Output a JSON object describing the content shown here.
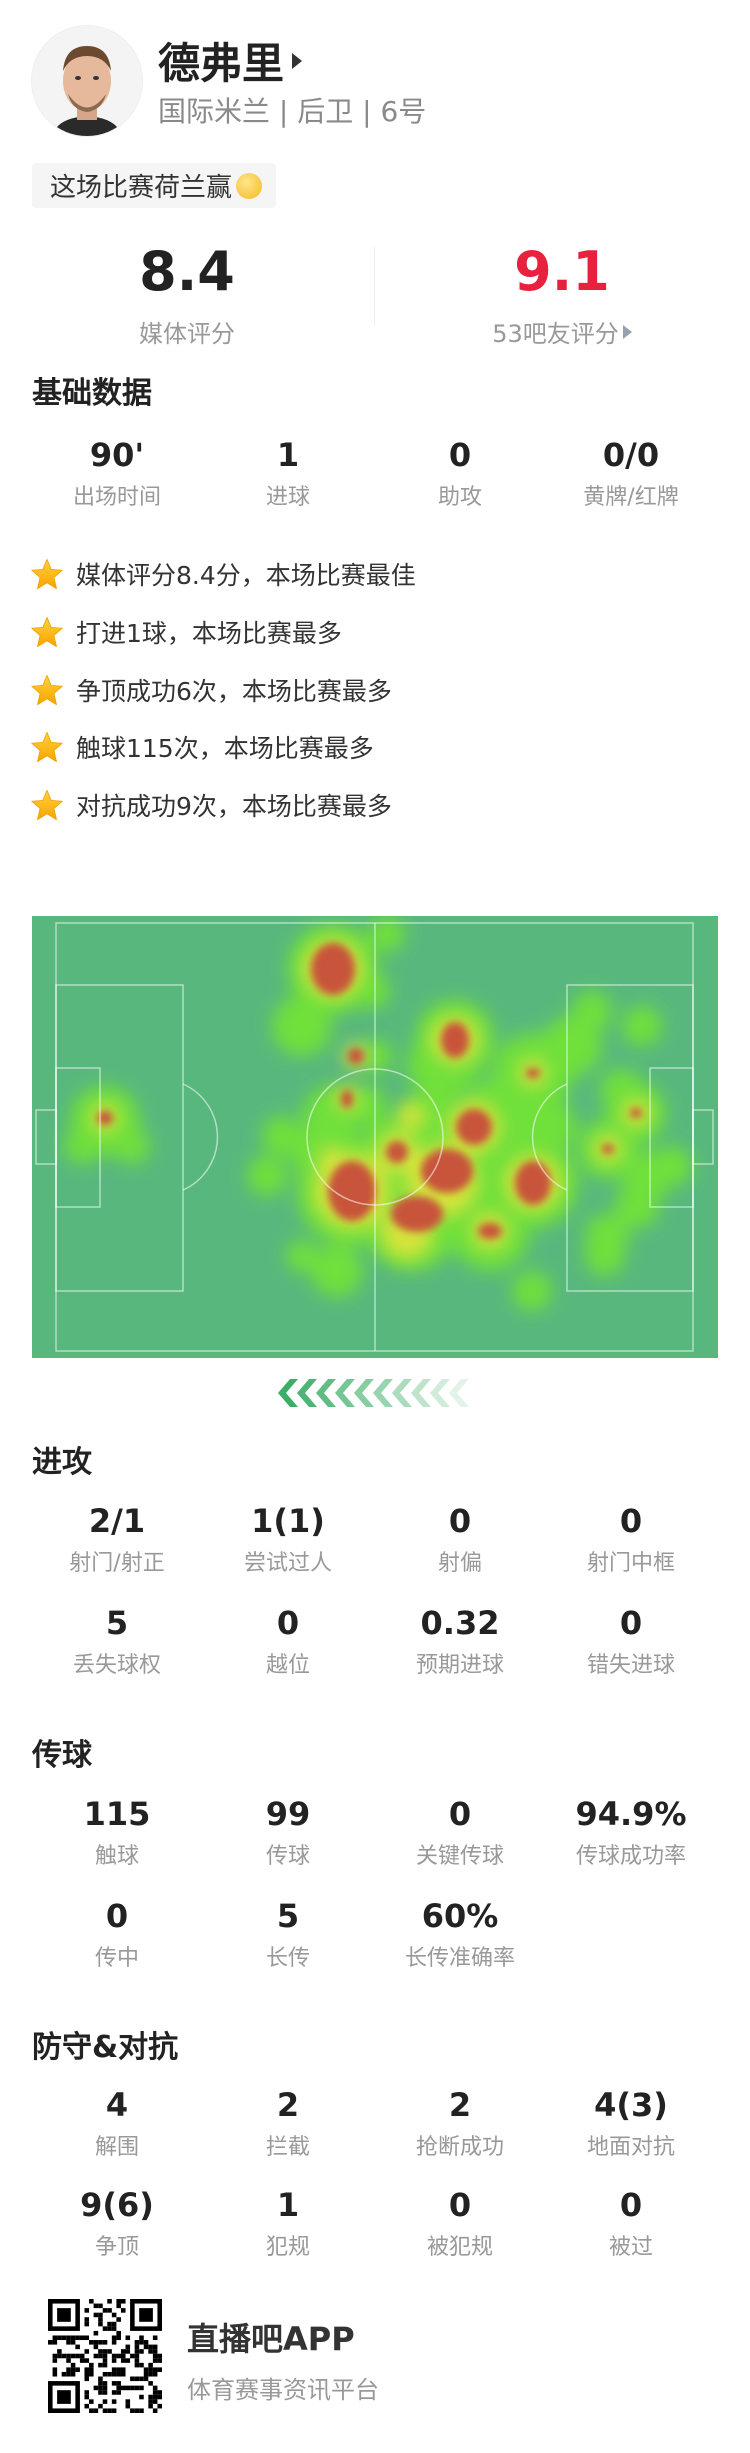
{
  "player": {
    "name": "德弗里",
    "info": "国际米兰 | 后卫 | 6号",
    "bubble": "这场比赛荷兰赢",
    "bubble_emoji": "smiling-blush-emoji"
  },
  "ratings": {
    "media": {
      "value": "8.4",
      "label": "媒体评分",
      "color": "#222222"
    },
    "fans": {
      "value": "9.1",
      "label": "53吧友评分",
      "color": "#e8213f"
    }
  },
  "basic": {
    "title": "基础数据",
    "stats": [
      {
        "value": "90'",
        "label": "出场时间"
      },
      {
        "value": "1",
        "label": "进球"
      },
      {
        "value": "0",
        "label": "助攻"
      },
      {
        "value": "0/0",
        "label": "黄牌/红牌"
      }
    ]
  },
  "highlights": [
    "媒体评分8.4分，本场比赛最佳",
    "打进1球，本场比赛最多",
    "争顶成功6次，本场比赛最多",
    "触球115次，本场比赛最多",
    "对抗成功9次，本场比赛最多"
  ],
  "heatmap": {
    "pitch_color": "#58b77d",
    "attack_direction": "left"
  },
  "attack": {
    "title": "进攻",
    "stats": [
      {
        "value": "2/1",
        "label": "射门/射正"
      },
      {
        "value": "1(1)",
        "label": "尝试过人"
      },
      {
        "value": "0",
        "label": "射偏"
      },
      {
        "value": "0",
        "label": "射门中框"
      },
      {
        "value": "5",
        "label": "丢失球权"
      },
      {
        "value": "0",
        "label": "越位"
      },
      {
        "value": "0.32",
        "label": "预期进球"
      },
      {
        "value": "0",
        "label": "错失进球"
      }
    ]
  },
  "passing": {
    "title": "传球",
    "stats": [
      {
        "value": "115",
        "label": "触球"
      },
      {
        "value": "99",
        "label": "传球"
      },
      {
        "value": "0",
        "label": "关键传球"
      },
      {
        "value": "94.9%",
        "label": "传球成功率"
      },
      {
        "value": "0",
        "label": "传中"
      },
      {
        "value": "5",
        "label": "长传"
      },
      {
        "value": "60%",
        "label": "长传准确率"
      }
    ]
  },
  "defense": {
    "title": "防守&对抗",
    "stats": [
      {
        "value": "4",
        "label": "解围"
      },
      {
        "value": "2",
        "label": "拦截"
      },
      {
        "value": "2",
        "label": "抢断成功"
      },
      {
        "value": "4(3)",
        "label": "地面对抗"
      },
      {
        "value": "9(6)",
        "label": "争顶"
      },
      {
        "value": "1",
        "label": "犯规"
      },
      {
        "value": "0",
        "label": "被犯规"
      },
      {
        "value": "0",
        "label": "被过"
      }
    ]
  },
  "footer": {
    "app_name": "直播吧APP",
    "slogan": "体育赛事资讯平台"
  }
}
